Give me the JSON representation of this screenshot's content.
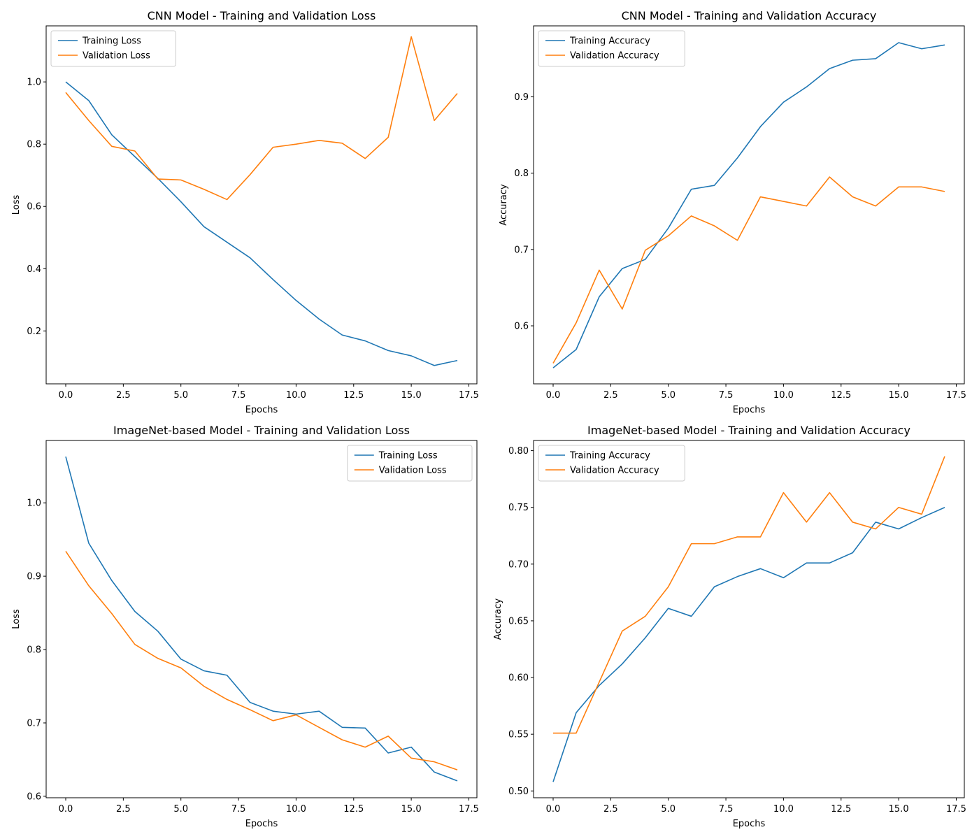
{
  "chart_data": [
    {
      "type": "line",
      "title": "CNN Model - Training and Validation Loss",
      "xlabel": "Epochs",
      "ylabel": "Loss",
      "xlim": [
        -0.85,
        17.85
      ],
      "ylim": [
        0.03,
        1.18
      ],
      "xticks": [
        0,
        2.5,
        5,
        7.5,
        10,
        12.5,
        15,
        17.5
      ],
      "xtick_labels": [
        "0.0",
        "2.5",
        "5.0",
        "7.5",
        "10.0",
        "12.5",
        "15.0",
        "17.5"
      ],
      "yticks": [
        0.2,
        0.4,
        0.6,
        0.8,
        1.0
      ],
      "ytick_labels": [
        "0.2",
        "0.4",
        "0.6",
        "0.8",
        "1.0"
      ],
      "legend": "upper-left",
      "grid": false,
      "x": [
        0,
        1,
        2,
        3,
        4,
        5,
        6,
        7,
        8,
        9,
        10,
        11,
        12,
        13,
        14,
        15,
        16,
        17
      ],
      "series": [
        {
          "name": "Training Loss",
          "color": "#1f77b4",
          "values": [
            1.0,
            0.94,
            0.83,
            0.76,
            0.69,
            0.615,
            0.535,
            0.485,
            0.435,
            0.365,
            0.298,
            0.238,
            0.187,
            0.168,
            0.137,
            0.12,
            0.089,
            0.105
          ]
        },
        {
          "name": "Validation Loss",
          "color": "#ff7f0e",
          "values": [
            0.966,
            0.876,
            0.793,
            0.778,
            0.688,
            0.685,
            0.655,
            0.622,
            0.702,
            0.79,
            0.8,
            0.812,
            0.803,
            0.754,
            0.822,
            1.145,
            0.876,
            0.963
          ]
        }
      ]
    },
    {
      "type": "line",
      "title": "CNN Model - Training and Validation Accuracy",
      "xlabel": "Epochs",
      "ylabel": "Accuracy",
      "xlim": [
        -0.85,
        17.85
      ],
      "ylim": [
        0.524,
        0.993
      ],
      "xticks": [
        0,
        2.5,
        5,
        7.5,
        10,
        12.5,
        15,
        17.5
      ],
      "xtick_labels": [
        "0.0",
        "2.5",
        "5.0",
        "7.5",
        "10.0",
        "12.5",
        "15.0",
        "17.5"
      ],
      "yticks": [
        0.6,
        0.7,
        0.8,
        0.9
      ],
      "ytick_labels": [
        "0.6",
        "0.7",
        "0.8",
        "0.9"
      ],
      "legend": "upper-left",
      "grid": false,
      "x": [
        0,
        1,
        2,
        3,
        4,
        5,
        6,
        7,
        8,
        9,
        10,
        11,
        12,
        13,
        14,
        15,
        16,
        17
      ],
      "series": [
        {
          "name": "Training Accuracy",
          "color": "#1f77b4",
          "values": [
            0.545,
            0.569,
            0.638,
            0.675,
            0.687,
            0.728,
            0.779,
            0.784,
            0.82,
            0.861,
            0.893,
            0.913,
            0.937,
            0.948,
            0.95,
            0.971,
            0.963,
            0.968
          ]
        },
        {
          "name": "Validation Accuracy",
          "color": "#ff7f0e",
          "values": [
            0.551,
            0.604,
            0.673,
            0.622,
            0.699,
            0.718,
            0.744,
            0.731,
            0.712,
            0.769,
            0.763,
            0.757,
            0.795,
            0.769,
            0.757,
            0.782,
            0.782,
            0.776
          ]
        }
      ]
    },
    {
      "type": "line",
      "title": "ImageNet-based Model - Training and Validation Loss",
      "xlabel": "Epochs",
      "ylabel": "Loss",
      "xlim": [
        -0.85,
        17.85
      ],
      "ylim": [
        0.598,
        1.085
      ],
      "xticks": [
        0,
        2.5,
        5,
        7.5,
        10,
        12.5,
        15,
        17.5
      ],
      "xtick_labels": [
        "0.0",
        "2.5",
        "5.0",
        "7.5",
        "10.0",
        "12.5",
        "15.0",
        "17.5"
      ],
      "yticks": [
        0.6,
        0.7,
        0.8,
        0.9,
        1.0
      ],
      "ytick_labels": [
        "0.6",
        "0.7",
        "0.8",
        "0.9",
        "1.0"
      ],
      "legend": "upper-right",
      "grid": false,
      "x": [
        0,
        1,
        2,
        3,
        4,
        5,
        6,
        7,
        8,
        9,
        10,
        11,
        12,
        13,
        14,
        15,
        16,
        17
      ],
      "series": [
        {
          "name": "Training Loss",
          "color": "#1f77b4",
          "values": [
            1.063,
            0.945,
            0.894,
            0.852,
            0.825,
            0.787,
            0.771,
            0.765,
            0.728,
            0.716,
            0.712,
            0.716,
            0.694,
            0.693,
            0.659,
            0.667,
            0.633,
            0.621
          ]
        },
        {
          "name": "Validation Loss",
          "color": "#ff7f0e",
          "values": [
            0.934,
            0.887,
            0.849,
            0.807,
            0.788,
            0.775,
            0.75,
            0.732,
            0.718,
            0.703,
            0.711,
            0.694,
            0.677,
            0.667,
            0.682,
            0.652,
            0.647,
            0.636
          ]
        }
      ]
    },
    {
      "type": "line",
      "title": "ImageNet-based Model - Training and Validation Accuracy",
      "xlabel": "Epochs",
      "ylabel": "Accuracy",
      "xlim": [
        -0.85,
        17.85
      ],
      "ylim": [
        0.494,
        0.809
      ],
      "xticks": [
        0,
        2.5,
        5,
        7.5,
        10,
        12.5,
        15,
        17.5
      ],
      "xtick_labels": [
        "0.0",
        "2.5",
        "5.0",
        "7.5",
        "10.0",
        "12.5",
        "15.0",
        "17.5"
      ],
      "yticks": [
        0.5,
        0.55,
        0.6,
        0.65,
        0.7,
        0.75,
        0.8
      ],
      "ytick_labels": [
        "0.50",
        "0.55",
        "0.60",
        "0.65",
        "0.70",
        "0.75",
        "0.80"
      ],
      "legend": "upper-left",
      "grid": false,
      "x": [
        0,
        1,
        2,
        3,
        4,
        5,
        6,
        7,
        8,
        9,
        10,
        11,
        12,
        13,
        14,
        15,
        16,
        17
      ],
      "series": [
        {
          "name": "Training Accuracy",
          "color": "#1f77b4",
          "values": [
            0.508,
            0.569,
            0.593,
            0.612,
            0.635,
            0.661,
            0.654,
            0.68,
            0.689,
            0.696,
            0.688,
            0.701,
            0.701,
            0.71,
            0.737,
            0.731,
            0.741,
            0.75
          ]
        },
        {
          "name": "Validation Accuracy",
          "color": "#ff7f0e",
          "values": [
            0.551,
            0.551,
            0.596,
            0.641,
            0.654,
            0.68,
            0.718,
            0.718,
            0.724,
            0.724,
            0.763,
            0.737,
            0.763,
            0.737,
            0.731,
            0.75,
            0.744,
            0.795
          ]
        }
      ]
    }
  ]
}
